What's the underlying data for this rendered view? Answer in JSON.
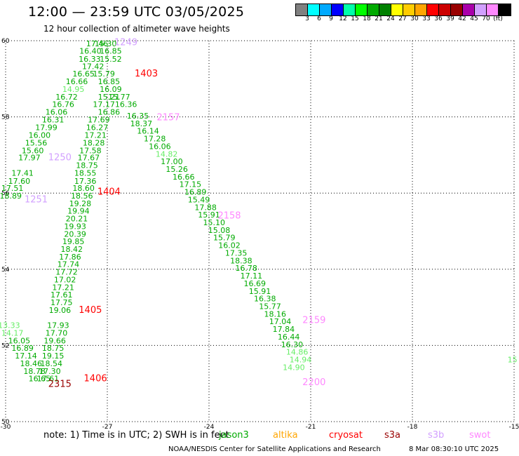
{
  "header": {
    "title": "12:00 — 23:59 UTC 03/05/2025",
    "subtitle": "12 hour collection of altimeter wave heights"
  },
  "legend": {
    "colors": [
      "#808080",
      "#00ffff",
      "#00aaff",
      "#0000ff",
      "#00ffaa",
      "#00ff00",
      "#00aa00",
      "#008000",
      "#ffff00",
      "#ffcc00",
      "#ffa500",
      "#ff0000",
      "#cc0000",
      "#990000",
      "#aa00aa",
      "#d2a0ff",
      "#ff88ff",
      "#000000"
    ],
    "labels": [
      "3",
      "6",
      "9",
      "12",
      "15",
      "18",
      "21",
      "24",
      "27",
      "30",
      "33",
      "36",
      "39",
      "42",
      "45",
      "70",
      "(ft)"
    ]
  },
  "chart_data": {
    "type": "scatter",
    "xlim": [
      -30,
      -15
    ],
    "ylim": [
      50,
      60
    ],
    "x_ticks": [
      "-30",
      "-27",
      "-24",
      "-21",
      "-18",
      "-15"
    ],
    "y_ticks": [
      "50",
      "52",
      "54",
      "56",
      "58",
      "60"
    ],
    "series": [
      {
        "name": "jason3",
        "color": "#00aa00",
        "points": [
          {
            "x": -27.3,
            "y": 59.93,
            "v": "17.46"
          },
          {
            "x": -27.5,
            "y": 59.73,
            "v": "16.40"
          },
          {
            "x": -27.52,
            "y": 59.52,
            "v": "16.33"
          },
          {
            "x": -27.42,
            "y": 59.33,
            "v": "17.42"
          },
          {
            "x": -27.7,
            "y": 59.13,
            "v": "16.65"
          },
          {
            "x": -27.9,
            "y": 58.93,
            "v": "16.66"
          },
          {
            "x": -28.2,
            "y": 58.53,
            "v": "16.72"
          },
          {
            "x": -28.3,
            "y": 58.33,
            "v": "16.76"
          },
          {
            "x": -28.5,
            "y": 58.13,
            "v": "16.06"
          },
          {
            "x": -28.6,
            "y": 57.93,
            "v": "16.31"
          },
          {
            "x": -28.8,
            "y": 57.73,
            "v": "17.99"
          },
          {
            "x": -29.0,
            "y": 57.52,
            "v": "16.00"
          },
          {
            "x": -29.1,
            "y": 57.32,
            "v": "15.56"
          },
          {
            "x": -29.2,
            "y": 57.12,
            "v": "15.60"
          },
          {
            "x": -29.3,
            "y": 56.93,
            "v": "17.97"
          },
          {
            "x": -29.5,
            "y": 56.53,
            "v": "17.41"
          },
          {
            "x": -29.6,
            "y": 56.32,
            "v": "17.60"
          },
          {
            "x": -29.8,
            "y": 56.13,
            "v": "17.51"
          },
          {
            "x": -29.85,
            "y": 55.93,
            "v": "18.89"
          },
          {
            "x": -27.05,
            "y": 59.93,
            "v": "15.30"
          },
          {
            "x": -26.9,
            "y": 59.73,
            "v": "16.85"
          },
          {
            "x": -26.9,
            "y": 59.52,
            "v": "15.52"
          },
          {
            "x": -27.1,
            "y": 59.13,
            "v": "15.79"
          },
          {
            "x": -26.95,
            "y": 58.93,
            "v": "16.85"
          },
          {
            "x": -26.9,
            "y": 58.73,
            "v": "16.09"
          },
          {
            "x": -26.95,
            "y": 58.53,
            "v": "15.21"
          },
          {
            "x": -26.65,
            "y": 58.53,
            "v": "15.77"
          },
          {
            "x": -27.1,
            "y": 58.33,
            "v": "17.17"
          },
          {
            "x": -26.45,
            "y": 58.33,
            "v": "16.36"
          },
          {
            "x": -26.95,
            "y": 58.13,
            "v": "16.86"
          },
          {
            "x": -26.1,
            "y": 58.03,
            "v": "16.35"
          },
          {
            "x": -27.25,
            "y": 57.93,
            "v": "17.69"
          },
          {
            "x": -26.0,
            "y": 57.83,
            "v": "18.37"
          },
          {
            "x": -27.3,
            "y": 57.73,
            "v": "16.27"
          },
          {
            "x": -25.8,
            "y": 57.63,
            "v": "16.14"
          },
          {
            "x": -27.35,
            "y": 57.52,
            "v": "17.21"
          },
          {
            "x": -25.6,
            "y": 57.43,
            "v": "17.28"
          },
          {
            "x": -27.4,
            "y": 57.32,
            "v": "18.28"
          },
          {
            "x": -25.45,
            "y": 57.23,
            "v": "16.06"
          },
          {
            "x": -27.5,
            "y": 57.12,
            "v": "17.58"
          },
          {
            "x": -27.55,
            "y": 56.93,
            "v": "17.67"
          },
          {
            "x": -25.1,
            "y": 56.83,
            "v": "17.00"
          },
          {
            "x": -27.6,
            "y": 56.73,
            "v": "18.75"
          },
          {
            "x": -24.95,
            "y": 56.63,
            "v": "15.26"
          },
          {
            "x": -27.65,
            "y": 56.53,
            "v": "18.55"
          },
          {
            "x": -24.75,
            "y": 56.43,
            "v": "16.66"
          },
          {
            "x": -27.65,
            "y": 56.32,
            "v": "17.36"
          },
          {
            "x": -24.55,
            "y": 56.23,
            "v": "17.15"
          },
          {
            "x": -27.7,
            "y": 56.13,
            "v": "18.60"
          },
          {
            "x": -24.4,
            "y": 56.03,
            "v": "16.89"
          },
          {
            "x": -27.75,
            "y": 55.93,
            "v": "18.56"
          },
          {
            "x": -24.3,
            "y": 55.83,
            "v": "15.49"
          },
          {
            "x": -27.8,
            "y": 55.73,
            "v": "19.28"
          },
          {
            "x": -24.1,
            "y": 55.63,
            "v": "17.88"
          },
          {
            "x": -27.85,
            "y": 55.53,
            "v": "19.94"
          },
          {
            "x": -24.0,
            "y": 55.43,
            "v": "15.91"
          },
          {
            "x": -27.9,
            "y": 55.33,
            "v": "20.21"
          },
          {
            "x": -23.85,
            "y": 55.23,
            "v": "15.10"
          },
          {
            "x": -27.95,
            "y": 55.13,
            "v": "19.93"
          },
          {
            "x": -23.7,
            "y": 55.03,
            "v": "15.08"
          },
          {
            "x": -27.95,
            "y": 54.93,
            "v": "20.39"
          },
          {
            "x": -23.55,
            "y": 54.83,
            "v": "15.79"
          },
          {
            "x": -28.0,
            "y": 54.73,
            "v": "19.85"
          },
          {
            "x": -23.4,
            "y": 54.63,
            "v": "16.02"
          },
          {
            "x": -28.05,
            "y": 54.53,
            "v": "18.42"
          },
          {
            "x": -23.2,
            "y": 54.43,
            "v": "17.35"
          },
          {
            "x": -28.1,
            "y": 54.33,
            "v": "17.86"
          },
          {
            "x": -23.05,
            "y": 54.23,
            "v": "18.38"
          },
          {
            "x": -28.15,
            "y": 54.13,
            "v": "17.74"
          },
          {
            "x": -22.9,
            "y": 54.03,
            "v": "16.78"
          },
          {
            "x": -28.2,
            "y": 53.93,
            "v": "17.72"
          },
          {
            "x": -22.75,
            "y": 53.83,
            "v": "17.11"
          },
          {
            "x": -28.25,
            "y": 53.73,
            "v": "17.02"
          },
          {
            "x": -22.65,
            "y": 53.63,
            "v": "16.69"
          },
          {
            "x": -28.3,
            "y": 53.53,
            "v": "17.21"
          },
          {
            "x": -22.5,
            "y": 53.43,
            "v": "15.91"
          },
          {
            "x": -28.35,
            "y": 53.33,
            "v": "17.61"
          },
          {
            "x": -22.35,
            "y": 53.23,
            "v": "16.38"
          },
          {
            "x": -28.35,
            "y": 53.13,
            "v": "17.75"
          },
          {
            "x": -22.2,
            "y": 53.03,
            "v": "15.77"
          },
          {
            "x": -28.4,
            "y": 52.93,
            "v": "19.06"
          },
          {
            "x": -22.05,
            "y": 52.83,
            "v": "18.16"
          },
          {
            "x": -28.45,
            "y": 52.53,
            "v": "17.93"
          },
          {
            "x": -21.9,
            "y": 52.63,
            "v": "17.04"
          },
          {
            "x": -28.5,
            "y": 52.33,
            "v": "17.70"
          },
          {
            "x": -21.8,
            "y": 52.43,
            "v": "17.84"
          },
          {
            "x": -28.55,
            "y": 52.13,
            "v": "19.66"
          },
          {
            "x": -21.65,
            "y": 52.23,
            "v": "16.44"
          },
          {
            "x": -28.6,
            "y": 51.93,
            "v": "18.75"
          },
          {
            "x": -21.55,
            "y": 52.03,
            "v": "16.30"
          },
          {
            "x": -28.6,
            "y": 51.73,
            "v": "19.15"
          },
          {
            "x": -28.65,
            "y": 51.53,
            "v": "18.54"
          },
          {
            "x": -28.7,
            "y": 51.33,
            "v": "17.30"
          },
          {
            "x": -28.75,
            "y": 51.13,
            "v": "17.61"
          },
          {
            "x": -29.6,
            "y": 52.13,
            "v": "16.05"
          },
          {
            "x": -29.5,
            "y": 51.93,
            "v": "16.89"
          },
          {
            "x": -29.4,
            "y": 51.73,
            "v": "17.14"
          },
          {
            "x": -29.25,
            "y": 51.53,
            "v": "18.46"
          },
          {
            "x": -29.15,
            "y": 51.33,
            "v": "18.78"
          },
          {
            "x": -29.0,
            "y": 51.13,
            "v": "16.65"
          }
        ]
      },
      {
        "name": "cryosat",
        "color": "#ff0000",
        "points": []
      },
      {
        "name": "s3b",
        "color": "#d2a0ff",
        "points": []
      },
      {
        "name": "swot",
        "color": "#ff88ff",
        "points": []
      }
    ],
    "light_points": [
      {
        "x": -28.0,
        "y": 58.73,
        "v": "14.95"
      },
      {
        "x": -25.25,
        "y": 57.03,
        "v": "14.82"
      },
      {
        "x": -29.9,
        "y": 52.53,
        "v": "13.33"
      },
      {
        "x": -29.8,
        "y": 52.33,
        "v": "14.17"
      },
      {
        "x": -21.4,
        "y": 51.83,
        "v": "14.86"
      },
      {
        "x": -21.3,
        "y": 51.63,
        "v": "14.94"
      },
      {
        "x": -21.5,
        "y": 51.43,
        "v": "14.90"
      },
      {
        "x": -15.05,
        "y": 51.63,
        "v": "15"
      }
    ],
    "annotations": [
      {
        "x": -26.45,
        "y": 59.97,
        "text": "1249",
        "color": "#d2a0ff"
      },
      {
        "x": -25.85,
        "y": 59.15,
        "text": "1403",
        "color": "#ff0000"
      },
      {
        "x": -25.2,
        "y": 58.0,
        "text": "2157",
        "color": "#ff88ff"
      },
      {
        "x": -28.4,
        "y": 56.95,
        "text": "1250",
        "color": "#d2a0ff"
      },
      {
        "x": -26.95,
        "y": 56.05,
        "text": "1404",
        "color": "#ff0000"
      },
      {
        "x": -29.1,
        "y": 55.85,
        "text": "1251",
        "color": "#d2a0ff"
      },
      {
        "x": -23.4,
        "y": 55.42,
        "text": "2158",
        "color": "#ff88ff"
      },
      {
        "x": -27.5,
        "y": 52.95,
        "text": "1405",
        "color": "#ff0000"
      },
      {
        "x": -20.9,
        "y": 52.68,
        "text": "2159",
        "color": "#ff88ff"
      },
      {
        "x": -27.35,
        "y": 51.15,
        "text": "1406",
        "color": "#ff0000"
      },
      {
        "x": -28.4,
        "y": 51.0,
        "text": "2315",
        "color": "#990000"
      },
      {
        "x": -20.9,
        "y": 51.05,
        "text": "2200",
        "color": "#ff88ff"
      }
    ]
  },
  "footer": {
    "note": "note: 1) Time is in UTC; 2) SWH is in feet",
    "satellites": [
      {
        "name": "jason3",
        "color": "#00aa00"
      },
      {
        "name": "altika",
        "color": "#ffa500"
      },
      {
        "name": "cryosat",
        "color": "#ff0000"
      },
      {
        "name": "s3a",
        "color": "#990000"
      },
      {
        "name": "s3b",
        "color": "#d2a0ff"
      },
      {
        "name": "swot",
        "color": "#ff88ff"
      }
    ],
    "credit": "NOAA/NESDIS Center for Satellite Applications and Research",
    "timestamp": "8 Mar 08:30:10 UTC 2025"
  }
}
